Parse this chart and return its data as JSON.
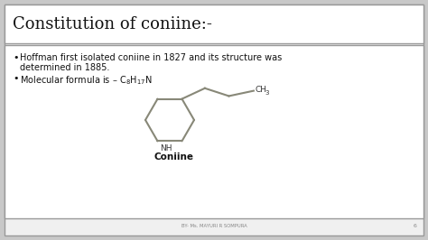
{
  "title": "Constitution of coniine:-",
  "bullet1_line1": "Hoffman first isolated coniine in 1827 and its structure was",
  "bullet1_line2": "determined in 1885.",
  "bullet2": "Molecular formula is – ",
  "formula": "$\\mathrm{C_8H_{17}N}$",
  "coniine_label": "Coniine",
  "nh_label": "NH",
  "ch3_label": "CH",
  "ch3_sub": "3",
  "footer": "BY- Ms. MAYURI R SOMPURA",
  "page_num": "6",
  "bg_color": "#c8c8c8",
  "slide_bg": "#f0f0f0",
  "title_bg": "#ffffff",
  "body_bg": "#ffffff",
  "title_color": "#111111",
  "body_color": "#111111",
  "struct_color": "#888878",
  "line_color": "#333333"
}
